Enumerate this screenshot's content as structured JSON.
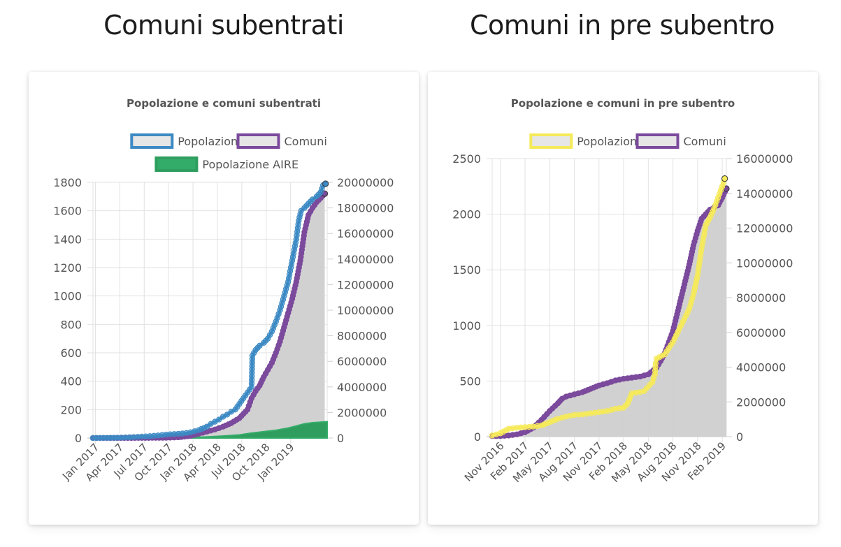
{
  "headings": {
    "left": "Comuni subentrati",
    "right": "Comuni in pre subentro"
  },
  "chart_data": [
    {
      "type": "line",
      "title": "Popolazione e comuni subentrati",
      "legend": [
        {
          "label": "Popolazione",
          "border": "#3d8ac4",
          "fill": "#e6e6e6"
        },
        {
          "label": "Comuni",
          "border": "#7b4a9c",
          "fill": "#e6e6e6"
        },
        {
          "label": "Popolazione AIRE",
          "border": "#2e9e5e",
          "fill": "#34ac69"
        }
      ],
      "legend_position": "top",
      "x_ticks": [
        "Jan 2017",
        "Apr 2017",
        "Jul 2017",
        "Oct 2017",
        "Jan 2018",
        "Apr 2018",
        "Jul 2018",
        "Oct 2018",
        "Jan 2019"
      ],
      "y_left_ticks": [
        "0",
        "200",
        "400",
        "600",
        "800",
        "1000",
        "1200",
        "1400",
        "1600",
        "1800"
      ],
      "y_right_ticks": [
        "0",
        "2000000",
        "4000000",
        "6000000",
        "8000000",
        "10000000",
        "12000000",
        "14000000",
        "16000000",
        "18000000",
        "20000000"
      ],
      "y_left_range": [
        0,
        1800
      ],
      "y_right_range": [
        0,
        20000000
      ],
      "grid": true,
      "x_range_months": [
        0,
        28.8
      ],
      "series": [
        {
          "name": "Comuni",
          "axis": "left",
          "color": "#7b4a9c",
          "points": [
            [
              0,
              0
            ],
            [
              3,
              0
            ],
            [
              6,
              1
            ],
            [
              9,
              2
            ],
            [
              10.5,
              5
            ],
            [
              12,
              15
            ],
            [
              13,
              30
            ],
            [
              14,
              45
            ],
            [
              15,
              60
            ],
            [
              16,
              80
            ],
            [
              17,
              105
            ],
            [
              18,
              140
            ],
            [
              18.5,
              170
            ],
            [
              19,
              200
            ],
            [
              19.5,
              280
            ],
            [
              20,
              330
            ],
            [
              20.5,
              370
            ],
            [
              21,
              430
            ],
            [
              21.5,
              480
            ],
            [
              22,
              530
            ],
            [
              22.5,
              600
            ],
            [
              23,
              680
            ],
            [
              23.5,
              780
            ],
            [
              24,
              880
            ],
            [
              24.5,
              980
            ],
            [
              25,
              1100
            ],
            [
              25.5,
              1250
            ],
            [
              26,
              1450
            ],
            [
              26.5,
              1570
            ],
            [
              27,
              1620
            ],
            [
              27.5,
              1660
            ],
            [
              28,
              1690
            ],
            [
              28.5,
              1720
            ]
          ]
        },
        {
          "name": "Popolazione",
          "axis": "left",
          "color": "#3d8ac4",
          "points": [
            [
              0,
              0
            ],
            [
              3,
              2
            ],
            [
              4.5,
              5
            ],
            [
              6,
              10
            ],
            [
              7,
              13
            ],
            [
              8,
              18
            ],
            [
              9,
              24
            ],
            [
              10,
              28
            ],
            [
              11,
              32
            ],
            [
              12,
              40
            ],
            [
              13,
              55
            ],
            [
              14,
              80
            ],
            [
              14.5,
              100
            ],
            [
              15,
              115
            ],
            [
              15.5,
              130
            ],
            [
              16,
              150
            ],
            [
              16.5,
              165
            ],
            [
              17,
              185
            ],
            [
              17.5,
              200
            ],
            [
              18,
              240
            ],
            [
              18.5,
              280
            ],
            [
              19,
              320
            ],
            [
              19.5,
              360
            ],
            [
              19.55,
              460
            ],
            [
              19.6,
              580
            ],
            [
              20,
              620
            ],
            [
              20.5,
              650
            ],
            [
              21,
              670
            ],
            [
              21.5,
              700
            ],
            [
              22,
              750
            ],
            [
              22.5,
              820
            ],
            [
              23,
              900
            ],
            [
              23.5,
              1000
            ],
            [
              24,
              1100
            ],
            [
              24.5,
              1250
            ],
            [
              25,
              1400
            ],
            [
              25.3,
              1530
            ],
            [
              25.6,
              1600
            ],
            [
              26,
              1620
            ],
            [
              26.5,
              1650
            ],
            [
              27,
              1680
            ],
            [
              27.5,
              1700
            ],
            [
              28,
              1730
            ],
            [
              28.3,
              1780
            ],
            [
              28.6,
              1790
            ]
          ]
        },
        {
          "name": "Popolazione AIRE",
          "axis": "left",
          "color": "#34ac69",
          "points": [
            [
              10,
              0
            ],
            [
              12,
              3
            ],
            [
              14,
              8
            ],
            [
              16,
              14
            ],
            [
              18,
              22
            ],
            [
              19.5,
              35
            ],
            [
              21,
              45
            ],
            [
              22.5,
              55
            ],
            [
              24,
              70
            ],
            [
              25,
              85
            ],
            [
              26,
              100
            ],
            [
              27,
              108
            ],
            [
              28,
              112
            ],
            [
              28.8,
              115
            ]
          ]
        }
      ],
      "area_under": "Comuni"
    },
    {
      "type": "line",
      "title": "Popolazione e comuni in pre subentro",
      "legend": [
        {
          "label": "Popolazione",
          "border": "#f5ea5a",
          "fill": "#e6e6e6"
        },
        {
          "label": "Comuni",
          "border": "#7b4a9c",
          "fill": "#e6e6e6"
        }
      ],
      "legend_position": "top",
      "x_ticks": [
        "Nov 2016",
        "Feb 2017",
        "May 2017",
        "Aug 2017",
        "Nov 2017",
        "Feb 2018",
        "May 2018",
        "Aug 2018",
        "Nov 2018",
        "Feb 2019"
      ],
      "y_left_ticks": [
        "0",
        "500",
        "1000",
        "1500",
        "2000",
        "2500"
      ],
      "y_right_ticks": [
        "0",
        "2000000",
        "4000000",
        "6000000",
        "8000000",
        "10000000",
        "12000000",
        "14000000",
        "16000000"
      ],
      "y_left_range": [
        0,
        2500
      ],
      "y_right_range": [
        0,
        16000000
      ],
      "grid": true,
      "x_range_months": [
        0,
        28.5
      ],
      "series": [
        {
          "name": "Comuni",
          "axis": "left",
          "color": "#7b4a9c",
          "points": [
            [
              0,
              5
            ],
            [
              1,
              5
            ],
            [
              2,
              10
            ],
            [
              3,
              20
            ],
            [
              4,
              40
            ],
            [
              5,
              80
            ],
            [
              6,
              150
            ],
            [
              7,
              230
            ],
            [
              8,
              300
            ],
            [
              8.5,
              340
            ],
            [
              9,
              360
            ],
            [
              10,
              380
            ],
            [
              11,
              400
            ],
            [
              12,
              430
            ],
            [
              13,
              460
            ],
            [
              14,
              480
            ],
            [
              15,
              505
            ],
            [
              16,
              520
            ],
            [
              17,
              530
            ],
            [
              18,
              540
            ],
            [
              19,
              560
            ],
            [
              20,
              620
            ],
            [
              20.5,
              680
            ],
            [
              21,
              750
            ],
            [
              21.5,
              850
            ],
            [
              22,
              950
            ],
            [
              22.5,
              1100
            ],
            [
              23,
              1250
            ],
            [
              23.5,
              1400
            ],
            [
              24,
              1550
            ],
            [
              24.5,
              1720
            ],
            [
              25,
              1850
            ],
            [
              25.5,
              1960
            ],
            [
              26,
              2000
            ],
            [
              26.5,
              2040
            ],
            [
              27,
              2060
            ],
            [
              27.5,
              2080
            ],
            [
              28,
              2150
            ],
            [
              28.5,
              2230
            ]
          ]
        },
        {
          "name": "Popolazione",
          "axis": "left",
          "color": "#f5ea5a",
          "points": [
            [
              0,
              10
            ],
            [
              1,
              30
            ],
            [
              2,
              70
            ],
            [
              3,
              80
            ],
            [
              4,
              85
            ],
            [
              5,
              90
            ],
            [
              6,
              100
            ],
            [
              7,
              130
            ],
            [
              8,
              160
            ],
            [
              9,
              180
            ],
            [
              10,
              195
            ],
            [
              11,
              200
            ],
            [
              12,
              210
            ],
            [
              13,
              220
            ],
            [
              14,
              230
            ],
            [
              15,
              250
            ],
            [
              16,
              260
            ],
            [
              16.5,
              300
            ],
            [
              17,
              390
            ],
            [
              18,
              400
            ],
            [
              18.5,
              410
            ],
            [
              19.5,
              490
            ],
            [
              19.8,
              560
            ],
            [
              19.9,
              660
            ],
            [
              20,
              700
            ],
            [
              21,
              740
            ],
            [
              22,
              850
            ],
            [
              23,
              1000
            ],
            [
              24,
              1150
            ],
            [
              24.5,
              1280
            ],
            [
              25,
              1450
            ],
            [
              25.5,
              1700
            ],
            [
              26,
              1900
            ],
            [
              26.5,
              1970
            ],
            [
              27,
              2050
            ],
            [
              27.5,
              2150
            ],
            [
              28,
              2250
            ],
            [
              28.3,
              2320
            ]
          ]
        }
      ],
      "area_under": "Comuni"
    }
  ]
}
